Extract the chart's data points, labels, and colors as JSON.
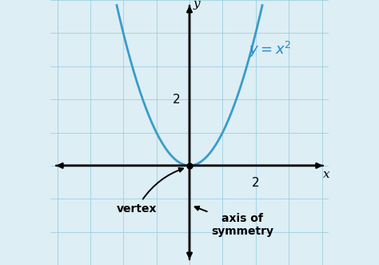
{
  "background_color": "#ddeef5",
  "grid_color": "#9ecfdf",
  "axis_color": "#000000",
  "curve_color": "#3a9cc8",
  "label_color": "#2288cc",
  "annotation_color": "#000000",
  "xlim": [
    -4.2,
    4.2
  ],
  "ylim": [
    -3.0,
    5.0
  ],
  "x_axis_label": "x",
  "y_axis_label": "y",
  "vertex_label": "vertex",
  "axis_sym_label": "axis of\nsymmetry",
  "curve_x_min": -2.2,
  "curve_x_max": 2.2,
  "arrow_extend": 0.3
}
